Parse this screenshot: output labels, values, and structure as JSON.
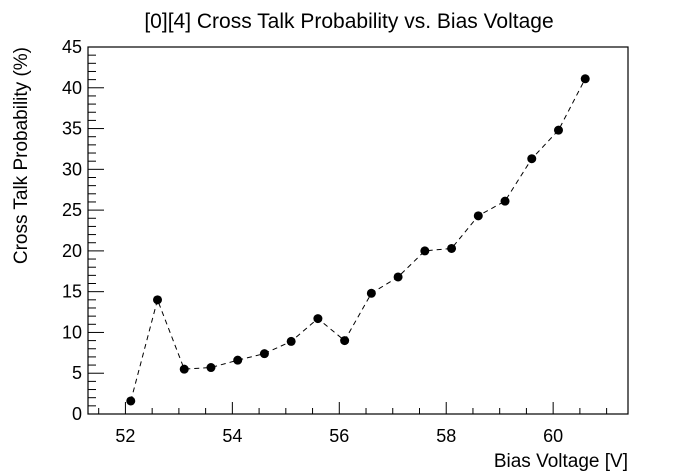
{
  "chart_data": {
    "type": "scatter",
    "title": "[0][4] Cross Talk Probability vs. Bias Voltage",
    "xlabel": "Bias Voltage [V]",
    "ylabel": "Cross Talk Probability (%)",
    "xlim": [
      51.3,
      61.4
    ],
    "ylim": [
      0,
      45
    ],
    "x_ticks": [
      52,
      54,
      56,
      58,
      60
    ],
    "y_ticks": [
      0,
      5,
      10,
      15,
      20,
      25,
      30,
      35,
      40,
      45
    ],
    "line_style": "dashed",
    "marker": "filled-circle",
    "grid": false,
    "series": [
      {
        "x": [
          52.1,
          52.6,
          53.1,
          53.6,
          54.1,
          54.6,
          55.1,
          55.6,
          56.1,
          56.6,
          57.1,
          57.6,
          58.1,
          58.6,
          59.1,
          59.6,
          60.1,
          60.6
        ],
        "y": [
          1.6,
          14.0,
          5.5,
          5.7,
          6.6,
          7.4,
          8.9,
          11.7,
          9.0,
          14.8,
          16.8,
          20.0,
          20.3,
          24.3,
          26.1,
          31.3,
          34.8,
          41.1
        ]
      }
    ]
  }
}
